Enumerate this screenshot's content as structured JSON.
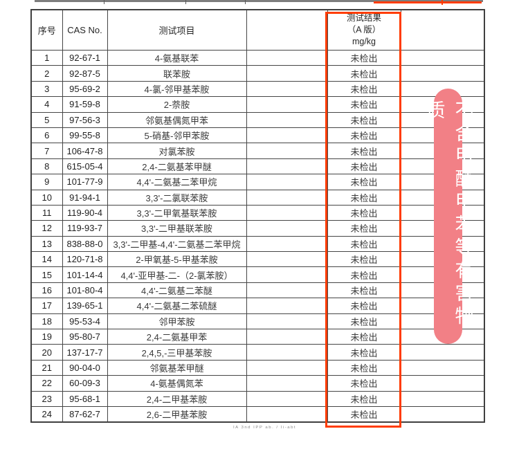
{
  "page": {
    "background": "#ffffff",
    "highlight_red": "#ff3c00",
    "banner_pink": "#f28086",
    "border_gray": "#454545"
  },
  "banner": {
    "text": "不含甲醛甲苯等有害物质"
  },
  "footer": {
    "smudge": "IA 3nd IPP ab. / Ii-abt"
  },
  "table": {
    "header": {
      "index": "序号",
      "cas": "CAS No.",
      "item": "测试项目",
      "blank1": "",
      "result_line1": "测试结果",
      "result_line2": "（A 版）",
      "result_line3": "mg/kg",
      "blank2": ""
    },
    "rows": [
      {
        "index": "1",
        "cas": "92-67-1",
        "item": "4-氨基联苯",
        "blank1": "",
        "result": "未检出",
        "blank2": ""
      },
      {
        "index": "2",
        "cas": "92-87-5",
        "item": "联苯胺",
        "blank1": "",
        "result": "未检出",
        "blank2": ""
      },
      {
        "index": "3",
        "cas": "95-69-2",
        "item": "4-氯-邻甲基苯胺",
        "blank1": "",
        "result": "未检出",
        "blank2": ""
      },
      {
        "index": "4",
        "cas": "91-59-8",
        "item": "2-萘胺",
        "blank1": "",
        "result": "未检出",
        "blank2": ""
      },
      {
        "index": "5",
        "cas": "97-56-3",
        "item": "邻氨基偶氮甲苯",
        "blank1": "",
        "result": "未检出",
        "blank2": ""
      },
      {
        "index": "6",
        "cas": "99-55-8",
        "item": "5-硝基-邻甲苯胺",
        "blank1": "",
        "result": "未检出",
        "blank2": ""
      },
      {
        "index": "7",
        "cas": "106-47-8",
        "item": "对氯苯胺",
        "blank1": "",
        "result": "未检出",
        "blank2": ""
      },
      {
        "index": "8",
        "cas": "615-05-4",
        "item": "2,4-二氨基苯甲醚",
        "blank1": "",
        "result": "未检出",
        "blank2": ""
      },
      {
        "index": "9",
        "cas": "101-77-9",
        "item": "4,4'-二氨基二苯甲烷",
        "blank1": "",
        "result": "未检出",
        "blank2": ""
      },
      {
        "index": "10",
        "cas": "91-94-1",
        "item": "3,3'-二氯联苯胺",
        "blank1": "",
        "result": "未检出",
        "blank2": ""
      },
      {
        "index": "11",
        "cas": "119-90-4",
        "item": "3,3'-二甲氧基联苯胺",
        "blank1": "",
        "result": "未检出",
        "blank2": ""
      },
      {
        "index": "12",
        "cas": "119-93-7",
        "item": "3,3'-二甲基联苯胺",
        "blank1": "",
        "result": "未检出",
        "blank2": ""
      },
      {
        "index": "13",
        "cas": "838-88-0",
        "item": "3,3'-二甲基-4,4'-二氨基二苯甲烷",
        "blank1": "",
        "result": "未检出",
        "blank2": ""
      },
      {
        "index": "14",
        "cas": "120-71-8",
        "item": "2-甲氧基-5-甲基苯胺",
        "blank1": "",
        "result": "未检出",
        "blank2": ""
      },
      {
        "index": "15",
        "cas": "101-14-4",
        "item": "4,4'-亚甲基-二-（2-氯苯胺）",
        "blank1": "",
        "result": "未检出",
        "blank2": ""
      },
      {
        "index": "16",
        "cas": "101-80-4",
        "item": "4,4'-二氨基二苯醚",
        "blank1": "",
        "result": "未检出",
        "blank2": ""
      },
      {
        "index": "17",
        "cas": "139-65-1",
        "item": "4,4'-二氨基二苯硫醚",
        "blank1": "",
        "result": "未检出",
        "blank2": ""
      },
      {
        "index": "18",
        "cas": "95-53-4",
        "item": "邻甲苯胺",
        "blank1": "",
        "result": "未检出",
        "blank2": ""
      },
      {
        "index": "19",
        "cas": "95-80-7",
        "item": "2,4-二氨基甲苯",
        "blank1": "",
        "result": "未检出",
        "blank2": ""
      },
      {
        "index": "20",
        "cas": "137-17-7",
        "item": "2,4,5,-三甲基苯胺",
        "blank1": "",
        "result": "未检出",
        "blank2": ""
      },
      {
        "index": "21",
        "cas": "90-04-0",
        "item": "邻氨基苯甲醚",
        "blank1": "",
        "result": "未检出",
        "blank2": ""
      },
      {
        "index": "22",
        "cas": "60-09-3",
        "item": "4-氨基偶氮苯",
        "blank1": "",
        "result": "未检出",
        "blank2": ""
      },
      {
        "index": "23",
        "cas": "95-68-1",
        "item": "2,4-二甲基苯胺",
        "blank1": "",
        "result": "未检出",
        "blank2": ""
      },
      {
        "index": "24",
        "cas": "87-62-7",
        "item": "2,6-二甲基苯胺",
        "blank1": "",
        "result": "未检出",
        "blank2": ""
      }
    ]
  }
}
